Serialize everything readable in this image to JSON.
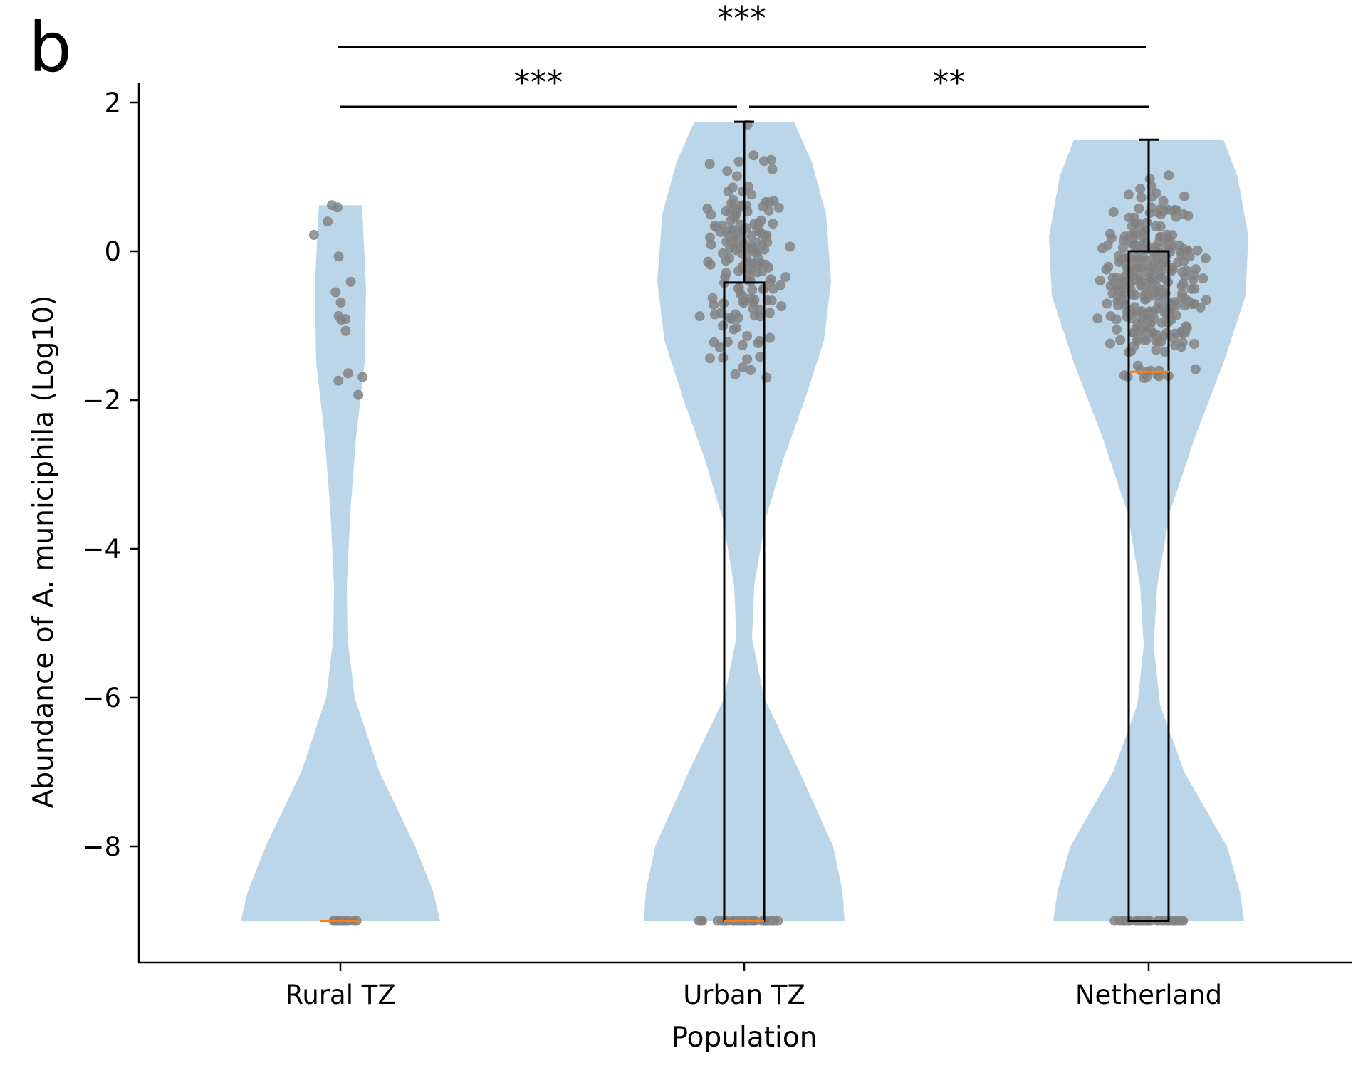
{
  "panel_label": "b",
  "chart_data": {
    "type": "violin",
    "xlabel": "Population",
    "ylabel": "Abundance of A. municiphila (Log10)",
    "ylim": [
      -9.55,
      2.25
    ],
    "yticks": [
      2,
      0,
      -2,
      -4,
      -6,
      -8
    ],
    "ytick_labels": [
      "2",
      "0",
      "−2",
      "−4",
      "−6",
      "−8"
    ],
    "grid": false,
    "legend": "none",
    "categories": [
      "Rural TZ",
      "Urban TZ",
      "Netherland"
    ],
    "colors": {
      "violin_fill": "#bcd6e9",
      "points": "#7f7f7f",
      "median": "#ff7f0e",
      "box": "#000000"
    },
    "groups": [
      {
        "name": "Rural TZ",
        "min": -9.0,
        "max": 0.62,
        "median": -9.0,
        "box": null,
        "points_low": [
          -9.0,
          -9.0,
          -9.0,
          -9.0,
          -9.0,
          -9.0,
          -9.0,
          -9.0,
          -9.0,
          -9.0,
          -9.0,
          -9.0,
          -9.0,
          -9.0,
          -9.0,
          -9.0,
          -9.0,
          -9.0
        ],
        "points_high": [
          0.62,
          0.59,
          0.4,
          0.22,
          -0.07,
          -0.41,
          -0.55,
          -0.69,
          -0.87,
          -0.91,
          -0.92,
          -1.07,
          -1.64,
          -1.69,
          -1.74,
          -1.93
        ]
      },
      {
        "name": "Urban TZ",
        "min": -9.0,
        "max": 1.74,
        "median": -9.0,
        "box": {
          "q1": -9.0,
          "q3": -0.42,
          "whisker_low": -9.0,
          "whisker_high": 1.74
        }
      },
      {
        "name": "Netherland",
        "min": -9.0,
        "max": 1.5,
        "median": -1.62,
        "box": {
          "q1": -9.0,
          "q3": 0.0,
          "whisker_low": -9.0,
          "whisker_high": 1.5
        }
      }
    ],
    "significance": [
      {
        "from": "Rural TZ",
        "to": "Urban TZ",
        "label": "***"
      },
      {
        "from": "Urban TZ",
        "to": "Netherland",
        "label": "**"
      },
      {
        "from": "Rural TZ",
        "to": "Netherland",
        "label": "***"
      }
    ]
  }
}
